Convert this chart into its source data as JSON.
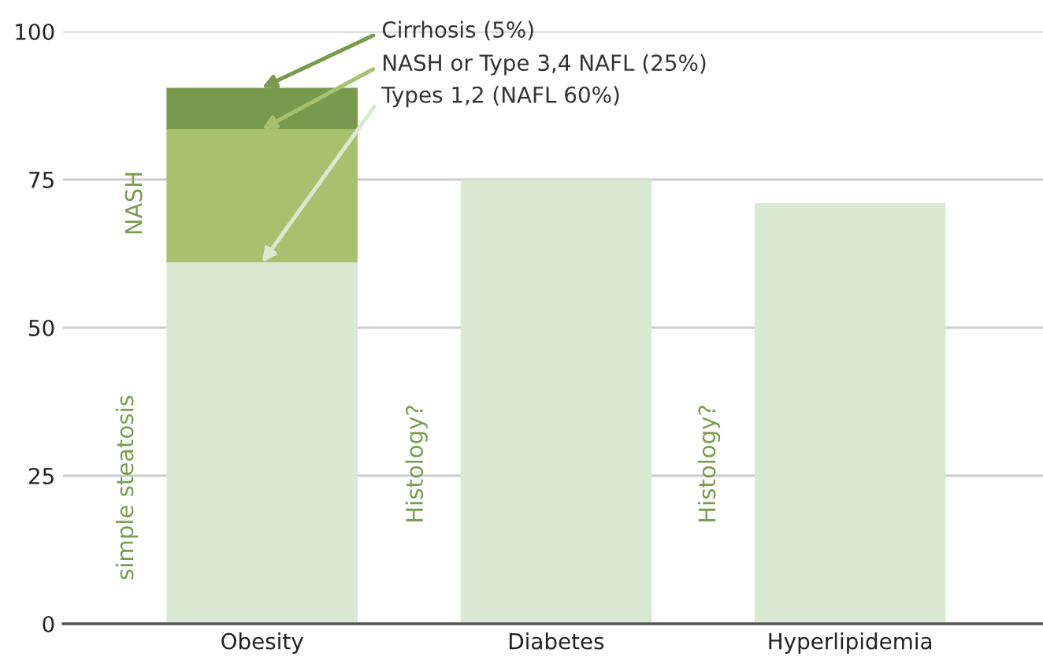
{
  "chart_data": {
    "type": "bar",
    "stacked": true,
    "categories": [
      "Obesity",
      "Diabetes",
      "Hyperlipidemia"
    ],
    "series": [
      {
        "color": "#d9ead3",
        "values": [
          61,
          75,
          71
        ]
      },
      {
        "color": "#a7c26f",
        "values": [
          22.5,
          null,
          null
        ]
      },
      {
        "color": "#789a4d",
        "values": [
          7,
          null,
          null
        ]
      }
    ],
    "ylim": [
      0,
      100
    ],
    "yticks": [
      0,
      25,
      50,
      75,
      100
    ],
    "grid": "y",
    "annotations": [
      {
        "text": "Cirrhosis (5%)",
        "x": "Obesity",
        "y": 90.5
      },
      {
        "text": "NASH or Type 3,4 NAFL (25%)",
        "x": "Obesity",
        "y": 83.5
      },
      {
        "text": "Types 1,2 (NAFL 60%)",
        "x": "Obesity",
        "y": 61
      },
      "NASH",
      "simple steatosis",
      "Histology?",
      "Histology?"
    ]
  }
}
